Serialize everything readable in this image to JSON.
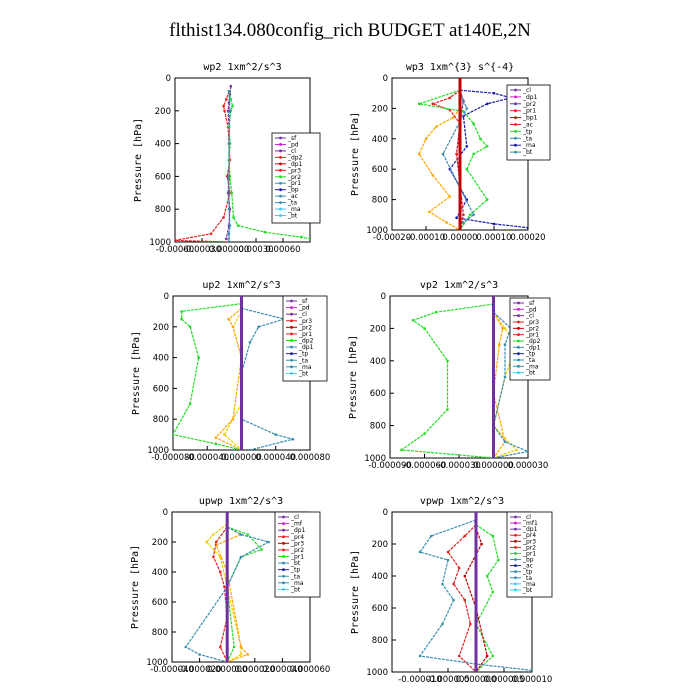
{
  "title": "flthist134.080config_rich  BUDGET at140E,2N",
  "colors": {
    "purple": "#7030a0",
    "red": "#e82020",
    "orange": "#ffa500",
    "green": "#22dd22",
    "blue": "#1a1ab0",
    "teal": "#3a8fb0",
    "cyan": "#30d0f0",
    "darkred": "#c00000",
    "magenta": "#d020d0",
    "yellow": "#f0d000"
  },
  "chart_data": [
    {
      "type": "line",
      "title": "wp2   1xm^2/s^3",
      "ylabel": "Pressure [hPa]",
      "ylim": [
        1000,
        0
      ],
      "yticks": [
        "0",
        "200",
        "400",
        "600",
        "800",
        "1000"
      ],
      "xlim": [
        -0.0006,
        0.0009
      ],
      "xticks": [
        -0.0006,
        -0.0003,
        0.0,
        0.0003,
        0.0006
      ],
      "xtick_labels": [
        "-0.00060",
        "-0.00030",
        "0.000000",
        "0.00030",
        "0.00060"
      ],
      "legend": [
        "_sf",
        "_pd",
        "_cl",
        "_dp2",
        "_dp1",
        "_pr3",
        "_pr2",
        "_pr1",
        "_bp",
        "_ac",
        "_ta",
        "_ma",
        "_bt"
      ],
      "series": [
        {
          "name": "_cl",
          "color": "purple",
          "x": [
            2e-05,
            1e-05,
            0.0,
            -1e-05,
            0.0,
            1e-05,
            0.0,
            0.0,
            -1e-05,
            1e-05,
            0.0,
            -3e-05,
            0.0
          ],
          "y": [
            50,
            100,
            150,
            200,
            300,
            400,
            500,
            600,
            700,
            800,
            900,
            980,
            1000
          ]
        },
        {
          "name": "_pr1",
          "color": "red",
          "x": [
            0.0,
            -3e-05,
            -6e-05,
            -5e-05,
            -1e-05,
            0.0,
            1e-05,
            -2e-05,
            1e-05,
            -6e-05,
            -0.0002,
            -0.0006,
            0.0
          ],
          "y": [
            80,
            130,
            170,
            200,
            300,
            400,
            500,
            600,
            700,
            850,
            950,
            990,
            1000
          ]
        },
        {
          "name": "_bp",
          "color": "green",
          "x": [
            0.0,
            2e-05,
            4e-05,
            2e-05,
            0.0,
            1e-05,
            0.0,
            1e-05,
            3e-05,
            5e-05,
            0.0001,
            0.0004,
            0.0008,
            0.0009
          ],
          "y": [
            80,
            130,
            170,
            200,
            300,
            400,
            500,
            600,
            700,
            850,
            900,
            940,
            970,
            980
          ]
        },
        {
          "name": "_ac",
          "color": "teal",
          "x": [
            0.0,
            1e-05,
            0.0,
            0.0,
            0.0,
            1e-05,
            0.0,
            0.0
          ],
          "y": [
            80,
            200,
            400,
            600,
            800,
            900,
            950,
            1000
          ]
        }
      ]
    },
    {
      "type": "line",
      "title": "wp3   1xm^{3} s^{-4}",
      "ylabel": "Pressure [hPa]",
      "ylim": [
        1000,
        0
      ],
      "yticks": [
        "0",
        "200",
        "400",
        "600",
        "800",
        "1000"
      ],
      "xlim": [
        -0.0002,
        0.0002
      ],
      "xticks": [
        -0.0002,
        -0.0001,
        0.0,
        0.0001,
        0.0002
      ],
      "xtick_labels": [
        "-0.00020",
        "-0.00010",
        "0.00000",
        "0.00010",
        "0.00020"
      ],
      "legend": [
        "_cl",
        "_dp1",
        "_pr2",
        "_pr1",
        "_bp1",
        "_ac",
        "_tp",
        "_ta",
        "_ma",
        "_bt"
      ],
      "series": [
        {
          "name": "_cl",
          "color": "purple",
          "x": [
            0.0,
            1e-05,
            0.0,
            -1e-05,
            0.0,
            0.0,
            0.0
          ],
          "y": [
            80,
            150,
            300,
            500,
            700,
            900,
            1000
          ]
        },
        {
          "name": "_dp1",
          "color": "blue",
          "x": [
            0.0,
            0.0001,
            0.00015,
            8e-05,
            1e-05,
            2e-05,
            -3e-05,
            2e-05,
            -1e-05,
            0.0001,
            0.0002
          ],
          "y": [
            80,
            100,
            130,
            170,
            250,
            450,
            600,
            800,
            920,
            960,
            985
          ]
        },
        {
          "name": "_pr2",
          "color": "orange",
          "x": [
            0.0,
            -2e-05,
            -7e-05,
            -0.0001,
            -0.00012,
            -8e-05,
            -3e-05,
            -9e-05,
            -4e-05,
            0.0
          ],
          "y": [
            200,
            260,
            320,
            400,
            500,
            640,
            780,
            880,
            950,
            1000
          ]
        },
        {
          "name": "_pr1",
          "color": "red",
          "x": [
            0.0,
            -3e-05,
            -8e-05,
            -3e-05,
            0.0,
            -1e-05,
            0.0,
            1e-05,
            0.0
          ],
          "y": [
            80,
            130,
            170,
            210,
            300,
            500,
            700,
            900,
            1000
          ]
        },
        {
          "name": "_bp1",
          "color": "green",
          "x": [
            0.0,
            -0.00012,
            1e-05,
            4e-05,
            6e-05,
            8e-05,
            4e-05,
            2e-05,
            8e-05,
            3e-05,
            0.0
          ],
          "y": [
            80,
            170,
            220,
            300,
            400,
            450,
            500,
            600,
            800,
            900,
            1000
          ]
        },
        {
          "name": "_ac",
          "color": "teal",
          "x": [
            0.0,
            2e-05,
            -5e-05,
            4e-05,
            1e-05,
            0.0
          ],
          "y": [
            100,
            200,
            500,
            900,
            950,
            1000
          ]
        },
        {
          "name": "_bt",
          "color": "darkred",
          "x": [
            0.0,
            0.0,
            0.0,
            0.0,
            0.0
          ],
          "y": [
            0,
            250,
            500,
            750,
            1000
          ]
        }
      ]
    },
    {
      "type": "line",
      "title": "up2   1xm^2/s^3",
      "ylabel": "Pressure [hPa]",
      "ylim": [
        1000,
        0
      ],
      "yticks": [
        "0",
        "200",
        "400",
        "600",
        "800",
        "1000"
      ],
      "xlim": [
        -8e-05,
        8e-05
      ],
      "xticks": [
        -8e-05,
        -4e-05,
        0.0,
        4e-05,
        8e-05
      ],
      "xtick_labels": [
        "-0.000080",
        "-0.000040",
        "0.000000",
        "0.000040",
        "0.000080"
      ],
      "legend": [
        "_sf",
        "_pd",
        "_cl",
        "_pr3",
        "_pr2",
        "_pr1",
        "_dp2",
        "_dp1",
        "_tp",
        "_ta",
        "_ma",
        "_bt"
      ],
      "series": [
        {
          "name": "_pr1",
          "color": "red",
          "x": [
            0.0,
            0.0,
            0.0,
            0.0,
            0.0
          ],
          "y": [
            0,
            250,
            500,
            750,
            1000
          ]
        },
        {
          "name": "_pr3",
          "color": "yellow",
          "x": [
            0.0,
            -1e-05,
            0.0,
            0.0,
            -2e-05,
            0.0
          ],
          "y": [
            100,
            200,
            400,
            700,
            900,
            1000
          ]
        },
        {
          "name": "_pr2",
          "color": "orange",
          "x": [
            0.0,
            -1.5e-05,
            -1e-05,
            0.0,
            -1e-05,
            -3e-05,
            0.0
          ],
          "y": [
            80,
            150,
            200,
            400,
            800,
            920,
            1000
          ]
        },
        {
          "name": "_dp2",
          "color": "green",
          "x": [
            0.0,
            -7e-05,
            -7e-05,
            -6e-05,
            -5e-05,
            -6e-05,
            -8e-05,
            -3e-05,
            0.0
          ],
          "y": [
            50,
            100,
            150,
            200,
            400,
            700,
            900,
            960,
            1000
          ]
        },
        {
          "name": "_dp1",
          "color": "teal",
          "x": [
            0.0,
            5e-05,
            2e-05,
            1e-05,
            0.0,
            0.0,
            4e-05,
            6e-05,
            1e-05
          ],
          "y": [
            80,
            150,
            200,
            300,
            500,
            800,
            900,
            930,
            1000
          ]
        },
        {
          "name": "_bt",
          "color": "purple",
          "x": [
            0.0,
            0.0,
            0.0,
            0.0,
            0.0
          ],
          "y": [
            0,
            250,
            500,
            750,
            1000
          ]
        }
      ]
    },
    {
      "type": "line",
      "title": "vp2   1xm^2/s^3",
      "ylabel": "Pressure [hPa]",
      "ylim": [
        1000,
        0
      ],
      "yticks": [
        "0",
        "200",
        "400",
        "600",
        "800",
        "1000"
      ],
      "xlim": [
        -9e-05,
        3e-05
      ],
      "xticks": [
        -9e-05,
        -6e-05,
        -3e-05,
        0.0,
        3e-05
      ],
      "xtick_labels": [
        "-0.000090",
        "-0.000060",
        "-0.000030",
        "0.000000",
        "0.000030"
      ],
      "legend": [
        "_sf",
        "_pd",
        "_cl",
        "_pr3",
        "_pr2",
        "_pr1",
        "_dp2",
        "_dp1",
        "_tp",
        "_ta",
        "_ma",
        "_bt"
      ],
      "series": [
        {
          "name": "_pr3",
          "color": "yellow",
          "x": [
            0.0,
            1e-05,
            2e-05,
            1e-05,
            0.0,
            1e-05,
            2e-05,
            0.0
          ],
          "y": [
            100,
            200,
            300,
            500,
            800,
            880,
            950,
            1000
          ]
        },
        {
          "name": "_pr2",
          "color": "orange",
          "x": [
            0.0,
            8e-06,
            5e-06,
            0.0,
            1e-05,
            0.0
          ],
          "y": [
            100,
            200,
            300,
            600,
            900,
            1000
          ]
        },
        {
          "name": "_dp2",
          "color": "green",
          "x": [
            0.0,
            -5e-05,
            -7e-05,
            -6e-05,
            -4e-05,
            -4e-05,
            -6e-05,
            -8e-05,
            0.0
          ],
          "y": [
            50,
            100,
            150,
            200,
            400,
            700,
            850,
            950,
            1000
          ]
        },
        {
          "name": "_dp1",
          "color": "teal",
          "x": [
            0.0,
            1.5e-05,
            1e-05,
            1e-05,
            0.0,
            1e-05,
            3e-05,
            0.0
          ],
          "y": [
            100,
            200,
            300,
            500,
            800,
            900,
            960,
            1000
          ]
        },
        {
          "name": "_pr1",
          "color": "red",
          "x": [
            0.0,
            0.0,
            0.0,
            0.0,
            0.0
          ],
          "y": [
            0,
            250,
            500,
            750,
            1000
          ]
        },
        {
          "name": "_bt",
          "color": "purple",
          "x": [
            0.0,
            0.0,
            0.0,
            0.0,
            0.0
          ],
          "y": [
            0,
            250,
            500,
            750,
            1000
          ]
        }
      ]
    },
    {
      "type": "line",
      "title": "upwp   1xm^2/s^3",
      "ylabel": "Pressure [hPa]",
      "ylim": [
        1000,
        0
      ],
      "yticks": [
        "0",
        "200",
        "400",
        "600",
        "800",
        "1000"
      ],
      "xlim": [
        -4e-05,
        6e-05
      ],
      "xticks": [
        -4e-05,
        -2e-05,
        0.0,
        2e-05,
        4e-05,
        6e-05
      ],
      "xtick_labels": [
        "-0.000040",
        "-0.000020",
        "0.000000",
        "0.000020",
        "0.000040",
        "0.000060"
      ],
      "legend": [
        "_cl",
        "_mf",
        "_dp1",
        "_pr4",
        "_pr3",
        "_pr2",
        "_pr1",
        "_bt",
        "_tp",
        "_ta",
        "_ma",
        "_bt"
      ],
      "series": [
        {
          "name": "_pr3",
          "color": "yellow",
          "x": [
            0.0,
            -1e-05,
            -1.5e-05,
            -5e-06,
            0.0,
            1e-05,
            1e-05,
            0.0
          ],
          "y": [
            80,
            150,
            200,
            300,
            500,
            900,
            950,
            1000
          ]
        },
        {
          "name": "_pr2",
          "color": "orange",
          "x": [
            0.0,
            1e-05,
            -8e-06,
            0.0,
            1e-05,
            1.5e-05,
            0.0
          ],
          "y": [
            100,
            150,
            220,
            400,
            900,
            950,
            1000
          ]
        },
        {
          "name": "_pr1",
          "color": "red",
          "x": [
            0.0,
            -8e-06,
            -1e-05,
            -5e-06,
            -2e-06,
            0.0,
            -5e-06,
            0.0
          ],
          "y": [
            100,
            200,
            300,
            400,
            500,
            700,
            900,
            1000
          ]
        },
        {
          "name": "_dp1",
          "color": "green",
          "x": [
            0.0,
            1.5e-05,
            2.5e-05,
            1e-05,
            0.0,
            5e-06,
            0.0
          ],
          "y": [
            100,
            150,
            250,
            300,
            500,
            900,
            1000
          ]
        },
        {
          "name": "_tp",
          "color": "teal",
          "x": [
            0.0,
            1e-05,
            3e-05,
            1e-05,
            0.0,
            -3e-05,
            -2e-05,
            0.0
          ],
          "y": [
            100,
            150,
            200,
            300,
            500,
            900,
            950,
            1000
          ]
        },
        {
          "name": "_bt",
          "color": "purple",
          "x": [
            0.0,
            0.0,
            0.0,
            0.0,
            0.0
          ],
          "y": [
            0,
            250,
            500,
            750,
            1000
          ]
        }
      ]
    },
    {
      "type": "line",
      "title": "vpwp   1xm^2/s^3",
      "ylabel": "Pressure [hPa]",
      "ylim": [
        1000,
        0
      ],
      "yticks": [
        "0",
        "200",
        "400",
        "600",
        "800",
        "1000"
      ],
      "xlim": [
        -1.5e-05,
        1e-05
      ],
      "xticks": [
        -1e-05,
        -5e-06,
        0.0,
        5e-06,
        1e-05
      ],
      "xtick_labels": [
        "-0.000010",
        "-0.000005",
        "0.000000",
        "0.000005",
        "0.000010"
      ],
      "legend": [
        "_cl",
        "_mf1",
        "_dp1",
        "_pr4",
        "_pr3",
        "_pr2",
        "_pr1",
        "_bp",
        "_ac",
        "_tp",
        "_ta",
        "_ma",
        "_bt"
      ],
      "series": [
        {
          "name": "_pr1",
          "color": "red",
          "x": [
            0.0,
            -2e-06,
            -5e-06,
            -3e-06,
            -4e-06,
            -2e-06,
            -1e-06,
            -3e-06,
            0.0
          ],
          "y": [
            80,
            150,
            250,
            350,
            450,
            550,
            700,
            900,
            1000
          ]
        },
        {
          "name": "_bp",
          "color": "green",
          "x": [
            0.0,
            3e-06,
            4e-06,
            2e-06,
            3e-06,
            0.0,
            3e-06,
            0.0
          ],
          "y": [
            80,
            150,
            300,
            400,
            500,
            700,
            900,
            1000
          ]
        },
        {
          "name": "_ac",
          "color": "teal",
          "x": [
            0.0,
            -8e-06,
            -1e-05,
            -5e-06,
            -6e-06,
            -4e-06,
            -6e-06,
            -1e-05,
            0.0,
            1e-05
          ],
          "y": [
            50,
            150,
            250,
            300,
            450,
            550,
            700,
            900,
            950,
            990
          ]
        },
        {
          "name": "_pr2",
          "color": "darkred",
          "x": [
            0.0,
            1e-06,
            -2e-06,
            0.0,
            2e-06,
            0.0
          ],
          "y": [
            100,
            200,
            400,
            600,
            900,
            1000
          ]
        },
        {
          "name": "_bt",
          "color": "purple",
          "x": [
            0.0,
            0.0,
            0.0,
            0.0,
            0.0
          ],
          "y": [
            0,
            250,
            500,
            750,
            1000
          ]
        }
      ]
    }
  ]
}
